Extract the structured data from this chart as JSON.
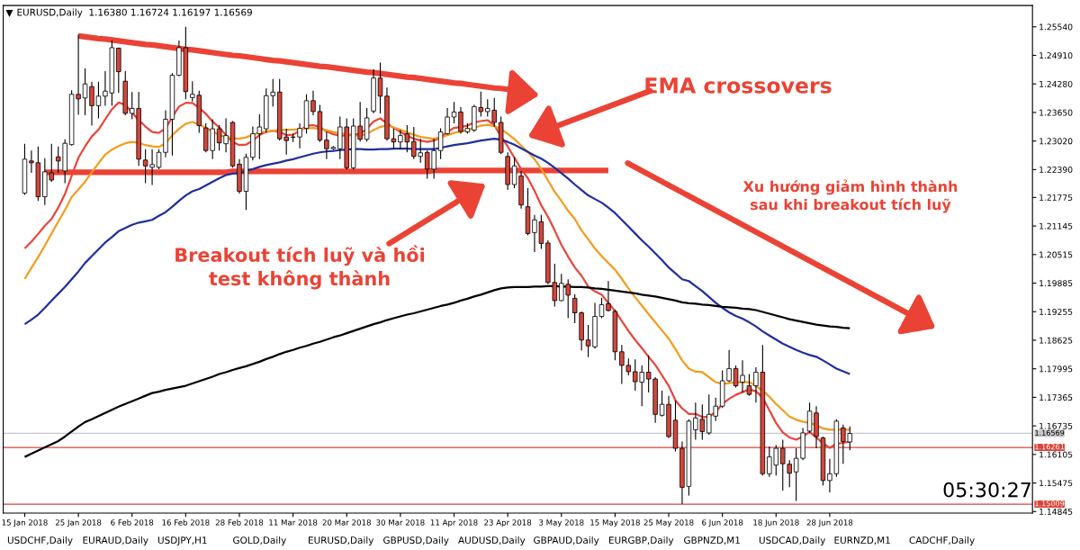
{
  "chart_data": {
    "type": "candlestick",
    "title": "EURUSD,Daily  1.16380 1.16724 1.16197 1.16569",
    "categories": [
      "15 Jan 2018",
      null,
      null,
      null,
      null,
      null,
      null,
      null,
      "25 Jan 2018",
      null,
      null,
      null,
      null,
      null,
      null,
      null,
      "6 Feb 2018",
      null,
      null,
      null,
      null,
      null,
      null,
      null,
      "16 Feb 2018",
      null,
      null,
      null,
      null,
      null,
      null,
      null,
      "28 Feb 2018",
      null,
      null,
      null,
      null,
      null,
      null,
      null,
      "11 Mar 2018",
      null,
      null,
      null,
      null,
      null,
      null,
      null,
      "20 Mar 2018",
      null,
      null,
      null,
      null,
      null,
      null,
      null,
      "30 Mar 2018",
      null,
      null,
      null,
      null,
      null,
      null,
      null,
      "11 Apr 2018",
      null,
      null,
      null,
      null,
      null,
      null,
      null,
      "23 Apr 2018",
      null,
      null,
      null,
      null,
      null,
      null,
      null,
      "3 May 2018",
      null,
      null,
      null,
      null,
      null,
      null,
      null,
      "15 May 2018",
      null,
      null,
      null,
      null,
      null,
      null,
      null,
      "25 May 2018",
      null,
      null,
      null,
      null,
      null,
      null,
      null,
      "6 Jun 2018",
      null,
      null,
      null,
      null,
      null,
      null,
      null,
      "18 Jun 2018",
      null,
      null,
      null,
      null,
      null,
      null,
      null,
      "28 Jun 2018",
      null,
      null,
      null
    ],
    "ohlc": [
      [
        1.2187,
        1.2296,
        1.2183,
        1.2262
      ],
      [
        1.2258,
        1.2281,
        1.2232,
        1.2254
      ],
      [
        1.2254,
        1.229,
        1.217,
        1.2179
      ],
      [
        1.2179,
        1.2264,
        1.2161,
        1.2234
      ],
      [
        1.2232,
        1.2296,
        1.2212,
        1.2216
      ],
      [
        1.2267,
        1.229,
        1.2232,
        1.2258
      ],
      [
        1.2236,
        1.2306,
        1.2209,
        1.2297
      ],
      [
        1.2294,
        1.2414,
        1.2292,
        1.2405
      ],
      [
        1.2405,
        1.2537,
        1.236,
        1.2395
      ],
      [
        1.2397,
        1.2462,
        1.2359,
        1.2428
      ],
      [
        1.2422,
        1.2433,
        1.2336,
        1.238
      ],
      [
        1.238,
        1.2433,
        1.2352,
        1.2401
      ],
      [
        1.2401,
        1.2456,
        1.238,
        1.2412
      ],
      [
        1.2408,
        1.2524,
        1.238,
        1.2508
      ],
      [
        1.2507,
        1.2508,
        1.2408,
        1.2455
      ],
      [
        1.2434,
        1.2456,
        1.2359,
        1.2363
      ],
      [
        1.2363,
        1.241,
        1.235,
        1.2374
      ],
      [
        1.2374,
        1.241,
        1.2247,
        1.2262
      ],
      [
        1.226,
        1.2284,
        1.2209,
        1.2247
      ],
      [
        1.2244,
        1.2284,
        1.2205,
        1.225
      ],
      [
        1.2244,
        1.2284,
        1.224,
        1.2277
      ],
      [
        1.2277,
        1.237,
        1.2266,
        1.235
      ],
      [
        1.235,
        1.2452,
        1.227,
        1.2447
      ],
      [
        1.2447,
        1.2524,
        1.2445,
        1.2508
      ],
      [
        1.2508,
        1.2554,
        1.2394,
        1.2411
      ],
      [
        1.2398,
        1.2434,
        1.2389,
        1.2405
      ],
      [
        1.2403,
        1.2413,
        1.232,
        1.2336
      ],
      [
        1.2331,
        1.2341,
        1.2277,
        1.2281
      ],
      [
        1.2281,
        1.235,
        1.2262,
        1.2329
      ],
      [
        1.2329,
        1.2337,
        1.2281,
        1.2298
      ],
      [
        1.2296,
        1.2352,
        1.2277,
        1.2314
      ],
      [
        1.2343,
        1.2346,
        1.2243,
        1.2247
      ],
      [
        1.2251,
        1.2262,
        1.2186,
        1.2191
      ],
      [
        1.2191,
        1.2274,
        1.215,
        1.2266
      ],
      [
        1.2266,
        1.2334,
        1.2259,
        1.2318
      ],
      [
        1.2318,
        1.2361,
        1.2262,
        1.2333
      ],
      [
        1.2329,
        1.2418,
        1.2321,
        1.2402
      ],
      [
        1.2402,
        1.2439,
        1.2378,
        1.241
      ],
      [
        1.241,
        1.2439,
        1.2303,
        1.2307
      ],
      [
        1.2311,
        1.2329,
        1.2272,
        1.2303
      ],
      [
        1.231,
        1.2318,
        1.23,
        1.2311
      ],
      [
        1.2311,
        1.2341,
        1.2286,
        1.233
      ],
      [
        1.233,
        1.2405,
        1.2318,
        1.2391
      ],
      [
        1.2391,
        1.2413,
        1.2359,
        1.2367
      ],
      [
        1.2367,
        1.2382,
        1.23,
        1.2304
      ],
      [
        1.2304,
        1.2322,
        1.2262,
        1.2285
      ],
      [
        1.2285,
        1.2291,
        1.2282,
        1.2288
      ],
      [
        1.2285,
        1.2356,
        1.2262,
        1.2333
      ],
      [
        1.2333,
        1.2352,
        1.2239,
        1.2243
      ],
      [
        1.2243,
        1.2352,
        1.2239,
        1.2335
      ],
      [
        1.2335,
        1.2388,
        1.2301,
        1.2306
      ],
      [
        1.2306,
        1.2375,
        1.2301,
        1.2353
      ],
      [
        1.2368,
        1.246,
        1.2363,
        1.2441
      ],
      [
        1.2441,
        1.2475,
        1.2363,
        1.2401
      ],
      [
        1.2401,
        1.242,
        1.2303,
        1.2307
      ],
      [
        1.2307,
        1.2329,
        1.2284,
        1.23
      ],
      [
        1.23,
        1.2326,
        1.2284,
        1.2314
      ],
      [
        1.2318,
        1.2337,
        1.2277,
        1.23
      ],
      [
        1.2301,
        1.2333,
        1.2262,
        1.2268
      ],
      [
        1.2268,
        1.2307,
        1.2254,
        1.2276
      ],
      [
        1.2277,
        1.2281,
        1.2219,
        1.224
      ],
      [
        1.224,
        1.2307,
        1.2219,
        1.2281
      ],
      [
        1.2281,
        1.233,
        1.2262,
        1.2322
      ],
      [
        1.2318,
        1.2375,
        1.2316,
        1.2355
      ],
      [
        1.2355,
        1.2388,
        1.2341,
        1.2366
      ],
      [
        1.2366,
        1.2377,
        1.2318,
        1.2323
      ],
      [
        1.2322,
        1.2341,
        1.2318,
        1.233
      ],
      [
        1.2326,
        1.2382,
        1.2322,
        1.2378
      ],
      [
        1.2376,
        1.2411,
        1.2356,
        1.2367
      ],
      [
        1.2367,
        1.2394,
        1.2356,
        1.2374
      ],
      [
        1.237,
        1.2397,
        1.2333,
        1.2343
      ],
      [
        1.2343,
        1.2356,
        1.2273,
        1.2277
      ],
      [
        1.2268,
        1.2277,
        1.2194,
        1.2206
      ],
      [
        1.2206,
        1.2266,
        1.2198,
        1.2247
      ],
      [
        1.2225,
        1.2236,
        1.2153,
        1.2161
      ],
      [
        1.2157,
        1.2198,
        1.2094,
        1.2098
      ],
      [
        1.21,
        1.2139,
        1.2057,
        1.2128
      ],
      [
        1.2124,
        1.2139,
        1.2064,
        1.2076
      ],
      [
        1.2077,
        1.2083,
        1.1986,
        1.199
      ],
      [
        1.199,
        1.2031,
        1.1937,
        1.195
      ],
      [
        1.195,
        1.2009,
        1.1949,
        1.1988
      ],
      [
        1.1986,
        1.1997,
        1.1911,
        1.1962
      ],
      [
        1.1955,
        1.1964,
        1.19,
        1.1923
      ],
      [
        1.1923,
        1.1926,
        1.184,
        1.1863
      ],
      [
        1.1863,
        1.1896,
        1.1825,
        1.185
      ],
      [
        1.1848,
        1.1945,
        1.1844,
        1.1915
      ],
      [
        1.1915,
        1.1956,
        1.1911,
        1.1941
      ],
      [
        1.1943,
        1.1993,
        1.1926,
        1.1928
      ],
      [
        1.1926,
        1.193,
        1.1818,
        1.1837
      ],
      [
        1.1837,
        1.1852,
        1.1766,
        1.1807
      ],
      [
        1.1807,
        1.1822,
        1.1785,
        1.1793
      ],
      [
        1.1793,
        1.182,
        1.1751,
        1.1771
      ],
      [
        1.177,
        1.1807,
        1.1717,
        1.1792
      ],
      [
        1.1792,
        1.1829,
        1.1747,
        1.1777
      ],
      [
        1.1777,
        1.1781,
        1.168,
        1.1699
      ],
      [
        1.1697,
        1.1751,
        1.1694,
        1.1721
      ],
      [
        1.1721,
        1.174,
        1.1647,
        1.165
      ],
      [
        1.1686,
        1.1729,
        1.1617,
        1.1624
      ],
      [
        1.1624,
        1.1639,
        1.1501,
        1.1538
      ],
      [
        1.154,
        1.1688,
        1.152,
        1.1684
      ],
      [
        1.1665,
        1.1725,
        1.1643,
        1.1691
      ],
      [
        1.1688,
        1.1721,
        1.1643,
        1.1661
      ],
      [
        1.1658,
        1.1743,
        1.1654,
        1.1699
      ],
      [
        1.1695,
        1.1736,
        1.1684,
        1.1717
      ],
      [
        1.1717,
        1.1796,
        1.1713,
        1.1773
      ],
      [
        1.1773,
        1.1841,
        1.177,
        1.18
      ],
      [
        1.18,
        1.1807,
        1.1758,
        1.1762
      ],
      [
        1.177,
        1.1818,
        1.1747,
        1.1785
      ],
      [
        1.1762,
        1.1788,
        1.174,
        1.1743
      ],
      [
        1.1762,
        1.1803,
        1.1725,
        1.1792
      ],
      [
        1.1792,
        1.1852,
        1.1564,
        1.1568
      ],
      [
        1.1568,
        1.1628,
        1.1561,
        1.1605
      ],
      [
        1.1587,
        1.1631,
        1.1564,
        1.1624
      ],
      [
        1.1624,
        1.1643,
        1.1531,
        1.159
      ],
      [
        1.1589,
        1.1598,
        1.1538,
        1.1569
      ],
      [
        1.1572,
        1.1624,
        1.1508,
        1.1602
      ],
      [
        1.1602,
        1.1669,
        1.1598,
        1.1658
      ],
      [
        1.1662,
        1.1725,
        1.1658,
        1.1706
      ],
      [
        1.1702,
        1.1717,
        1.1624,
        1.165
      ],
      [
        1.1647,
        1.165,
        1.1542,
        1.1553
      ],
      [
        1.1553,
        1.1601,
        1.1527,
        1.1568
      ],
      [
        1.1568,
        1.1688,
        1.1561,
        1.1684
      ],
      [
        1.1669,
        1.1676,
        1.159,
        1.1639
      ],
      [
        1.1638,
        1.16724,
        1.16197,
        1.16569
      ]
    ],
    "series": [
      {
        "type": "line",
        "color": "#e8453c",
        "values": [
          1.2065,
          1.208,
          1.2097,
          1.2115,
          1.213,
          1.2155,
          1.2185,
          1.2225,
          1.2265,
          1.229,
          1.2312,
          1.2327,
          1.235,
          1.2372,
          1.2387,
          1.2382,
          1.2365,
          1.2348,
          1.2334,
          1.2322,
          1.232,
          1.233,
          1.2355,
          1.2378,
          1.2386,
          1.2386,
          1.2375,
          1.2362,
          1.2345,
          1.2332,
          1.2315,
          1.23,
          1.2293,
          1.2294,
          1.2303,
          1.2315,
          1.2322,
          1.2325,
          1.2322,
          1.2315,
          1.2316,
          1.2325,
          1.2336,
          1.2337,
          1.2333,
          1.2323,
          1.2317,
          1.2314,
          1.2314,
          1.2316,
          1.2318,
          1.2329,
          1.2345,
          1.2352,
          1.2341,
          1.2331,
          1.2322,
          1.2314,
          1.2307,
          1.2303,
          1.23,
          1.2303,
          1.231,
          1.2322,
          1.2331,
          1.2333,
          1.2336,
          1.2343,
          1.2346,
          1.2348,
          1.2337,
          1.2312,
          1.229,
          1.2265,
          1.224,
          1.222,
          1.2192,
          1.216,
          1.2135,
          1.2105,
          1.2073,
          1.2047,
          1.2023,
          1.2005,
          1.1981,
          1.197,
          1.1963,
          1.1945,
          1.1927,
          1.1905,
          1.1883,
          1.1863,
          1.1845,
          1.1826,
          1.1808,
          1.1785,
          1.1762,
          1.173,
          1.1712,
          1.17,
          1.17,
          1.1693,
          1.1694,
          1.1704,
          1.1722,
          1.1733,
          1.1742,
          1.1748,
          1.1754,
          1.175,
          1.1736,
          1.1708,
          1.168,
          1.1659,
          1.1648,
          1.1643,
          1.165,
          1.166,
          1.1648,
          1.1635,
          1.1625,
          1.1634,
          1.1636,
          1.1639
        ]
      },
      {
        "type": "line",
        "color": "#f39c1f",
        "values": [
          1.1998,
          1.2022,
          1.2046,
          1.2071,
          1.2098,
          1.2124,
          1.215,
          1.2178,
          1.2195,
          1.2212,
          1.2233,
          1.2253,
          1.2272,
          1.2283,
          1.2291,
          1.2297,
          1.23,
          1.2298,
          1.2293,
          1.229,
          1.2289,
          1.2297,
          1.2315,
          1.2329,
          1.234,
          1.2344,
          1.2338,
          1.2331,
          1.2323,
          1.2315,
          1.2311,
          1.2308,
          1.2307,
          1.231,
          1.2316,
          1.2321,
          1.2323,
          1.2325,
          1.2326,
          1.2327,
          1.2327,
          1.2328,
          1.233,
          1.2331,
          1.2329,
          1.2326,
          1.2322,
          1.2319,
          1.2317,
          1.2315,
          1.2314,
          1.2318,
          1.2326,
          1.2333,
          1.2337,
          1.2332,
          1.2327,
          1.2321,
          1.2316,
          1.2311,
          1.2309,
          1.2307,
          1.231,
          1.2315,
          1.232,
          1.2323,
          1.2326,
          1.2331,
          1.2336,
          1.2338,
          1.2335,
          1.2328,
          1.2318,
          1.2306,
          1.2292,
          1.2278,
          1.2262,
          1.224,
          1.2215,
          1.219,
          1.217,
          1.2148,
          1.213,
          1.2105,
          1.2085,
          1.2065,
          1.2048,
          1.2033,
          1.2018,
          1.1998,
          1.1977,
          1.1957,
          1.1939,
          1.192,
          1.1902,
          1.1884,
          1.1866,
          1.1843,
          1.1818,
          1.18,
          1.1793,
          1.1792,
          1.1781,
          1.177,
          1.1766,
          1.1768,
          1.177,
          1.177,
          1.177,
          1.1762,
          1.1751,
          1.1738,
          1.1722,
          1.1708,
          1.1694,
          1.1687,
          1.1683,
          1.168,
          1.1675,
          1.1668,
          1.1665,
          1.1665,
          1.1665,
          1.1665
        ]
      },
      {
        "type": "line",
        "color": "#1f2f9c",
        "values": [
          1.1898,
          1.1908,
          1.1919,
          1.1934,
          1.195,
          1.1965,
          1.198,
          1.1997,
          1.2014,
          1.2033,
          1.2048,
          1.2063,
          1.2078,
          1.209,
          1.2103,
          1.211,
          1.2117,
          1.2122,
          1.2125,
          1.2128,
          1.2137,
          1.2145,
          1.2157,
          1.217,
          1.2182,
          1.2191,
          1.2196,
          1.2204,
          1.2212,
          1.222,
          1.2227,
          1.223,
          1.2231,
          1.2236,
          1.224,
          1.2245,
          1.2249,
          1.2252,
          1.2255,
          1.2259,
          1.2262,
          1.2266,
          1.227,
          1.2274,
          1.2277,
          1.2279,
          1.228,
          1.2282,
          1.2283,
          1.2284,
          1.2284,
          1.2283,
          1.2283,
          1.2284,
          1.2284,
          1.2285,
          1.2285,
          1.2285,
          1.2284,
          1.2284,
          1.2284,
          1.2284,
          1.2287,
          1.229,
          1.2293,
          1.2295,
          1.2297,
          1.23,
          1.2303,
          1.2305,
          1.2307,
          1.2305,
          1.23,
          1.2294,
          1.2286,
          1.2278,
          1.227,
          1.2263,
          1.2254,
          1.2243,
          1.2231,
          1.2219,
          1.2206,
          1.2194,
          1.2182,
          1.2174,
          1.2166,
          1.2155,
          1.2143,
          1.2128,
          1.2113,
          1.2098,
          1.2083,
          1.2069,
          1.2054,
          1.2039,
          1.2023,
          1.201,
          1.1997,
          1.1993,
          1.1982,
          1.1971,
          1.1958,
          1.1945,
          1.1934,
          1.1924,
          1.1916,
          1.191,
          1.1902,
          1.1893,
          1.1882,
          1.1873,
          1.1864,
          1.1855,
          1.1848,
          1.1841,
          1.1835,
          1.183,
          1.1826,
          1.1818,
          1.1809,
          1.18,
          1.1794,
          1.1788
        ]
      },
      {
        "type": "line",
        "color": "#ea4335",
        "values": [
          null,
          null,
          null,
          null,
          null,
          null,
          null,
          null,
          1.2534,
          1.2532,
          1.253,
          1.2528,
          1.2527,
          1.2525,
          1.2523,
          1.2521,
          1.2519,
          1.2517,
          1.2515,
          1.2514,
          1.2512,
          1.251,
          1.2508,
          1.2506,
          1.2504,
          1.2503,
          1.2501,
          1.2499,
          1.2497,
          1.2495,
          1.2493,
          1.2491,
          1.249,
          1.2488,
          1.2486,
          1.2484,
          1.2482,
          1.248,
          1.2479,
          1.2477,
          1.2475,
          1.2473,
          1.2471,
          1.2469,
          1.2467,
          1.2466,
          1.2464,
          1.2462,
          1.246,
          1.2458,
          1.2456,
          1.2454,
          1.2453,
          1.2451,
          1.2449,
          1.2447,
          1.2445,
          1.2443,
          1.2442,
          1.244,
          1.2438,
          1.2436,
          1.2434,
          1.2432,
          1.243,
          1.2429,
          1.2427,
          1.2425,
          1.2423,
          1.2421,
          1.2419,
          1.2418,
          1.2416,
          1.2414,
          1.2412,
          1.241,
          null,
          null,
          null,
          null,
          null,
          null,
          null,
          null,
          null,
          null,
          null,
          null,
          null,
          null,
          null,
          null,
          null,
          null,
          null,
          null,
          null,
          null,
          null,
          null,
          null,
          null,
          null,
          null,
          null,
          null,
          null,
          null,
          null,
          null,
          null,
          null,
          null,
          null,
          null,
          null,
          null,
          null,
          null,
          null,
          null,
          null,
          null,
          null
        ]
      },
      {
        "type": "line",
        "color": "#ea4335",
        "values": [
          null,
          null,
          null,
          1.2233,
          1.2233,
          1.2233,
          1.2233,
          1.2233,
          1.2233,
          1.2233,
          1.2233,
          1.2233,
          1.2233,
          1.2233,
          1.2233,
          1.2233,
          1.2233,
          1.2233,
          1.2233,
          1.2233,
          1.2233,
          1.2233,
          1.2233,
          1.2233,
          1.2233,
          1.2233,
          1.2233,
          1.2233,
          1.2233,
          1.2233,
          1.2233,
          1.2235,
          1.2235,
          1.2235,
          1.2235,
          1.2235,
          1.2235,
          1.2235,
          1.2235,
          1.2235,
          1.2235,
          1.2235,
          1.2235,
          1.2235,
          1.2235,
          1.2235,
          1.2235,
          1.2235,
          1.2235,
          1.2235,
          1.2235,
          1.2235,
          1.2235,
          1.2235,
          1.2235,
          1.2235,
          1.2235,
          1.2235,
          1.2235,
          1.2235,
          1.2235,
          1.2237,
          1.2237,
          1.2237,
          1.2237,
          1.2237,
          1.2237,
          1.2237,
          1.2237,
          1.2237,
          1.2237,
          1.2237,
          1.2237,
          1.2237,
          1.2237,
          1.2237,
          1.2237,
          1.2237,
          1.2237,
          1.2237,
          1.2237,
          1.2237,
          1.2237,
          1.2237,
          1.2237,
          1.2237,
          1.2237,
          1.2237,
          null,
          null,
          null,
          null,
          null,
          null,
          null,
          null,
          null,
          null,
          null,
          null,
          null,
          null,
          null,
          null,
          null,
          null,
          null,
          null,
          null,
          null,
          null,
          null,
          null,
          null,
          null,
          null,
          null,
          null,
          null,
          null,
          null,
          null,
          null,
          null
        ]
      },
      {
        "type": "line",
        "color": "#000000",
        "values": [
          1.1605,
          1.1612,
          1.1619,
          1.1626,
          1.1633,
          1.164,
          1.165,
          1.1661,
          1.1672,
          1.1682,
          1.1688,
          1.1695,
          1.1702,
          1.1709,
          1.1716,
          1.1722,
          1.1728,
          1.1734,
          1.174,
          1.1746,
          1.1749,
          1.1753,
          1.1756,
          1.1759,
          1.1762,
          1.1767,
          1.1772,
          1.1777,
          1.1782,
          1.1788,
          1.1792,
          1.1797,
          1.1801,
          1.1805,
          1.181,
          1.1815,
          1.1821,
          1.1826,
          1.1832,
          1.1837,
          1.1841,
          1.1846,
          1.185,
          1.1855,
          1.1859,
          1.1864,
          1.1869,
          1.1873,
          1.1878,
          1.1883,
          1.1888,
          1.1893,
          1.1898,
          1.1902,
          1.1907,
          1.1911,
          1.1915,
          1.1919,
          1.1922,
          1.1926,
          1.193,
          1.1934,
          1.1938,
          1.1941,
          1.1945,
          1.195,
          1.1954,
          1.1959,
          1.1963,
          1.1968,
          1.1973,
          1.1977,
          1.1979,
          1.198,
          1.198,
          1.198,
          1.1981,
          1.1981,
          1.1982,
          1.1982,
          1.1981,
          1.1981,
          1.198,
          1.198,
          1.1979,
          1.1977,
          1.1976,
          1.1974,
          1.1972,
          1.197,
          1.1968,
          1.1966,
          1.1963,
          1.1961,
          1.1959,
          1.1956,
          1.1953,
          1.195,
          1.1946,
          1.1944,
          1.1943,
          1.1941,
          1.194,
          1.1938,
          1.1936,
          1.1935,
          1.1934,
          1.1932,
          1.1931,
          1.1929,
          1.1925,
          1.1921,
          1.1917,
          1.1913,
          1.1909,
          1.1906,
          1.1903,
          1.19,
          1.1897,
          1.1895,
          1.1893,
          1.1892,
          1.189,
          1.1889
        ]
      }
    ],
    "ylim": [
      1.1481,
      1.2601
    ],
    "yticks": [
      {
        "value": 1.2554,
        "label": "1.25540"
      },
      {
        "value": 1.2491,
        "label": "1.24910"
      },
      {
        "value": 1.2428,
        "label": "1.24280"
      },
      {
        "value": 1.2365,
        "label": "1.23650"
      },
      {
        "value": 1.2302,
        "label": "1.23020"
      },
      {
        "value": 1.2239,
        "label": "1.22390"
      },
      {
        "value": 1.21775,
        "label": "1.21775"
      },
      {
        "value": 1.21145,
        "label": "1.21145"
      },
      {
        "value": 1.20515,
        "label": "1.20515"
      },
      {
        "value": 1.19885,
        "label": "1.19885"
      },
      {
        "value": 1.19255,
        "label": "1.19255"
      },
      {
        "value": 1.18625,
        "label": "1.18625"
      },
      {
        "value": 1.17995,
        "label": "1.17995"
      },
      {
        "value": 1.17365,
        "label": "1.17365"
      },
      {
        "value": 1.16735,
        "label": "1.16735"
      },
      {
        "value": 1.16105,
        "label": "1.16105"
      },
      {
        "value": 1.15475,
        "label": "1.15475"
      },
      {
        "value": 1.14845,
        "label": "1.14845"
      }
    ],
    "ref_lines": [
      {
        "axis": "y",
        "value": 1.16569,
        "label": "1.16569",
        "color": "#c8c8c8"
      },
      {
        "axis": "y",
        "value": 1.16261,
        "label": "1.16261",
        "color": "#d9453a"
      },
      {
        "axis": "y",
        "value": 1.15009,
        "label": "1.15009",
        "color": "#d9453a"
      }
    ],
    "annotations": [
      "EMA crossovers",
      "Breakout tích luỹ và hồi\ntest không thành",
      "Xu hướng giảm hình thành\nsau khi breakout tích luỹ",
      "05:30:27",
      "USDCHF,Daily",
      "EURAUD,Daily",
      "USDJPY,H1",
      "GOLD,Daily",
      "EURUSD,Daily",
      "GBPUSD,Daily",
      "AUDUSD,Daily",
      "GBPAUD,Daily",
      "EURGBP,Daily",
      "GBPNZD,M1",
      "USDCAD,Daily",
      "EURNZD,M1",
      "CADCHF,Daily"
    ],
    "grid": false,
    "legend": false
  }
}
